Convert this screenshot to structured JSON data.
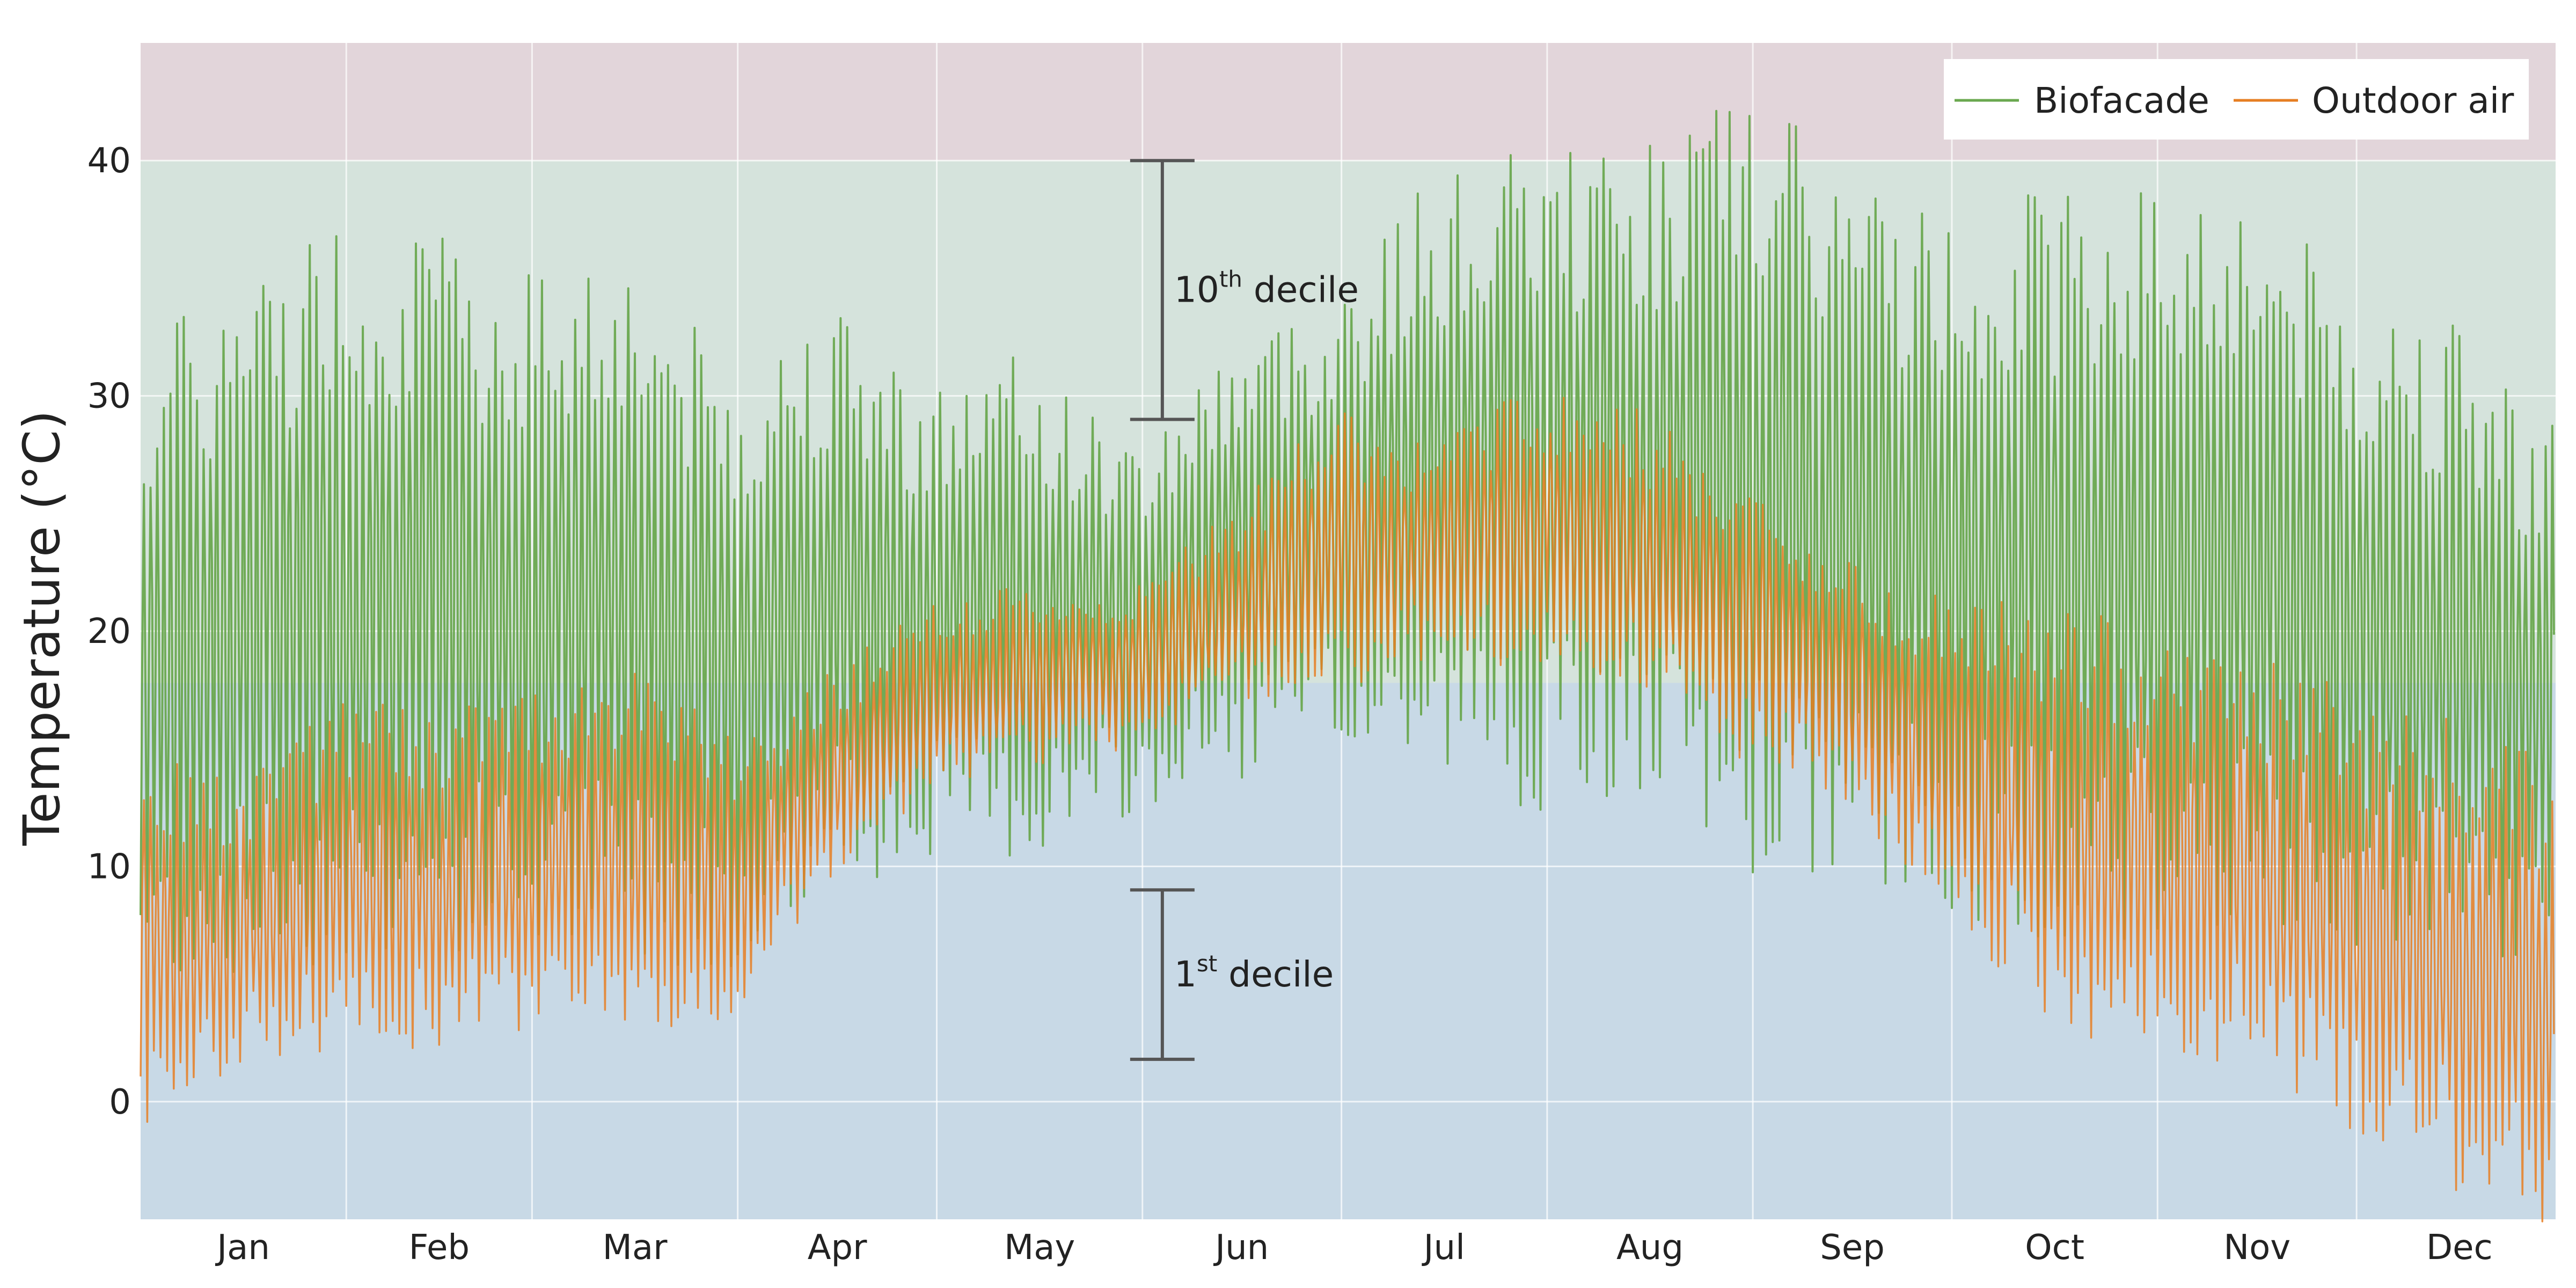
{
  "chart_data": {
    "type": "line",
    "title": "",
    "xlabel": "",
    "ylabel": "Temperature (°C)",
    "x_ticks": [
      "Jan",
      "Feb",
      "Mar",
      "Apr",
      "May",
      "Jun",
      "Jul",
      "Aug",
      "Sep",
      "Oct",
      "Nov",
      "Dec"
    ],
    "y_ticks": [
      0,
      10,
      20,
      30,
      40
    ],
    "xlim": [
      1,
      365
    ],
    "ylim": [
      -5,
      45
    ],
    "grid": true,
    "legend_position": "top-right",
    "colors": {
      "biofacade": "#6aa84f",
      "outdoor": "#e67e22",
      "band_hot": "#e2d5da",
      "band_comfort": "#d5e3dc",
      "band_cold": "#c8d9e6",
      "annotation": "#555555"
    },
    "bands": [
      {
        "from": 40,
        "to": 45,
        "color_key": "band_hot"
      },
      {
        "from": 17.8,
        "to": 40,
        "color_key": "band_comfort"
      },
      {
        "from": -5,
        "to": 17.8,
        "color_key": "band_cold"
      }
    ],
    "annotations": [
      {
        "base": "10",
        "sup": "th",
        "text": " decile",
        "day": 155,
        "y_top": 40,
        "y_bottom": 29
      },
      {
        "base": "1",
        "sup": "st",
        "text": " decile",
        "day": 155,
        "y_top": 9,
        "y_bottom": 1.8
      }
    ],
    "series": [
      {
        "name": "Biofacade",
        "color_key": "biofacade",
        "x": [
          1,
          15,
          31,
          45,
          59,
          73,
          90,
          104,
          120,
          134,
          151,
          165,
          181,
          195,
          212,
          226,
          243,
          257,
          273,
          287,
          304,
          318,
          334,
          348,
          365
        ],
        "daily_max": [
          29,
          31,
          34,
          33,
          32,
          33,
          28,
          31,
          28,
          29,
          26,
          30,
          32,
          36,
          37,
          37,
          39,
          36,
          34,
          35,
          35,
          35,
          31,
          30,
          26
        ],
        "daily_min": [
          8,
          9,
          10,
          10,
          10,
          10,
          9,
          12,
          13,
          13,
          14,
          16,
          17,
          17,
          16,
          16,
          14,
          13,
          12,
          11,
          11,
          11,
          10,
          9,
          8
        ]
      },
      {
        "name": "Outdoor air",
        "color_key": "outdoor",
        "x": [
          1,
          15,
          31,
          45,
          59,
          73,
          90,
          104,
          120,
          134,
          151,
          165,
          181,
          195,
          212,
          226,
          243,
          257,
          273,
          287,
          304,
          318,
          334,
          348,
          365
        ],
        "daily_max": [
          13,
          12,
          15,
          15,
          16,
          17,
          14,
          17,
          20,
          21,
          21,
          24,
          28,
          27,
          29,
          28,
          25,
          22,
          20,
          19,
          18,
          17,
          15,
          14,
          12
        ],
        "daily_min": [
          1,
          3,
          4,
          4,
          5,
          5,
          5,
          10,
          14,
          15,
          16,
          18,
          19,
          20,
          20,
          19,
          16,
          14,
          10,
          6,
          4,
          4,
          1,
          -1,
          -3
        ]
      }
    ]
  }
}
